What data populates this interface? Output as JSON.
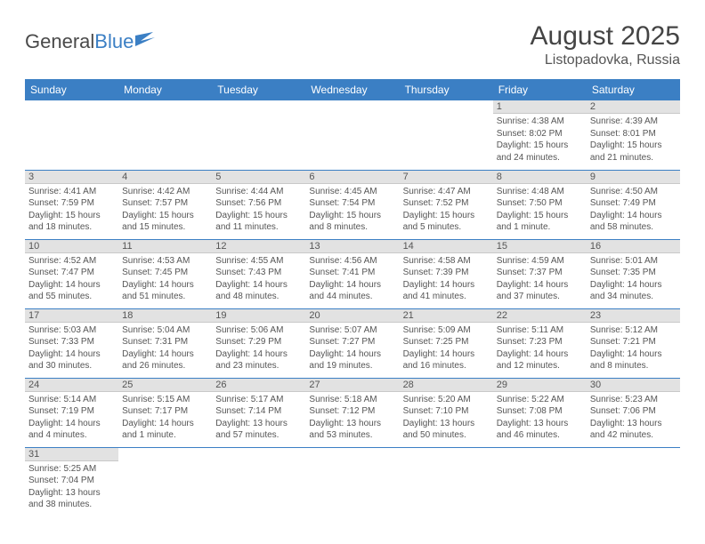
{
  "logo": {
    "text1": "General",
    "text2": "Blue"
  },
  "title": "August 2025",
  "location": "Listopadovka, Russia",
  "weekdays": [
    "Sunday",
    "Monday",
    "Tuesday",
    "Wednesday",
    "Thursday",
    "Friday",
    "Saturday"
  ],
  "colors": {
    "header_bg": "#3b7fc4",
    "header_text": "#ffffff",
    "daynum_bg": "#e2e2e2",
    "text": "#555555",
    "row_sep": "#3b7fc4"
  },
  "weeks": [
    [
      {
        "day": "",
        "sunrise": "",
        "sunset": "",
        "daylight": ""
      },
      {
        "day": "",
        "sunrise": "",
        "sunset": "",
        "daylight": ""
      },
      {
        "day": "",
        "sunrise": "",
        "sunset": "",
        "daylight": ""
      },
      {
        "day": "",
        "sunrise": "",
        "sunset": "",
        "daylight": ""
      },
      {
        "day": "",
        "sunrise": "",
        "sunset": "",
        "daylight": ""
      },
      {
        "day": "1",
        "sunrise": "Sunrise: 4:38 AM",
        "sunset": "Sunset: 8:02 PM",
        "daylight": "Daylight: 15 hours and 24 minutes."
      },
      {
        "day": "2",
        "sunrise": "Sunrise: 4:39 AM",
        "sunset": "Sunset: 8:01 PM",
        "daylight": "Daylight: 15 hours and 21 minutes."
      }
    ],
    [
      {
        "day": "3",
        "sunrise": "Sunrise: 4:41 AM",
        "sunset": "Sunset: 7:59 PM",
        "daylight": "Daylight: 15 hours and 18 minutes."
      },
      {
        "day": "4",
        "sunrise": "Sunrise: 4:42 AM",
        "sunset": "Sunset: 7:57 PM",
        "daylight": "Daylight: 15 hours and 15 minutes."
      },
      {
        "day": "5",
        "sunrise": "Sunrise: 4:44 AM",
        "sunset": "Sunset: 7:56 PM",
        "daylight": "Daylight: 15 hours and 11 minutes."
      },
      {
        "day": "6",
        "sunrise": "Sunrise: 4:45 AM",
        "sunset": "Sunset: 7:54 PM",
        "daylight": "Daylight: 15 hours and 8 minutes."
      },
      {
        "day": "7",
        "sunrise": "Sunrise: 4:47 AM",
        "sunset": "Sunset: 7:52 PM",
        "daylight": "Daylight: 15 hours and 5 minutes."
      },
      {
        "day": "8",
        "sunrise": "Sunrise: 4:48 AM",
        "sunset": "Sunset: 7:50 PM",
        "daylight": "Daylight: 15 hours and 1 minute."
      },
      {
        "day": "9",
        "sunrise": "Sunrise: 4:50 AM",
        "sunset": "Sunset: 7:49 PM",
        "daylight": "Daylight: 14 hours and 58 minutes."
      }
    ],
    [
      {
        "day": "10",
        "sunrise": "Sunrise: 4:52 AM",
        "sunset": "Sunset: 7:47 PM",
        "daylight": "Daylight: 14 hours and 55 minutes."
      },
      {
        "day": "11",
        "sunrise": "Sunrise: 4:53 AM",
        "sunset": "Sunset: 7:45 PM",
        "daylight": "Daylight: 14 hours and 51 minutes."
      },
      {
        "day": "12",
        "sunrise": "Sunrise: 4:55 AM",
        "sunset": "Sunset: 7:43 PM",
        "daylight": "Daylight: 14 hours and 48 minutes."
      },
      {
        "day": "13",
        "sunrise": "Sunrise: 4:56 AM",
        "sunset": "Sunset: 7:41 PM",
        "daylight": "Daylight: 14 hours and 44 minutes."
      },
      {
        "day": "14",
        "sunrise": "Sunrise: 4:58 AM",
        "sunset": "Sunset: 7:39 PM",
        "daylight": "Daylight: 14 hours and 41 minutes."
      },
      {
        "day": "15",
        "sunrise": "Sunrise: 4:59 AM",
        "sunset": "Sunset: 7:37 PM",
        "daylight": "Daylight: 14 hours and 37 minutes."
      },
      {
        "day": "16",
        "sunrise": "Sunrise: 5:01 AM",
        "sunset": "Sunset: 7:35 PM",
        "daylight": "Daylight: 14 hours and 34 minutes."
      }
    ],
    [
      {
        "day": "17",
        "sunrise": "Sunrise: 5:03 AM",
        "sunset": "Sunset: 7:33 PM",
        "daylight": "Daylight: 14 hours and 30 minutes."
      },
      {
        "day": "18",
        "sunrise": "Sunrise: 5:04 AM",
        "sunset": "Sunset: 7:31 PM",
        "daylight": "Daylight: 14 hours and 26 minutes."
      },
      {
        "day": "19",
        "sunrise": "Sunrise: 5:06 AM",
        "sunset": "Sunset: 7:29 PM",
        "daylight": "Daylight: 14 hours and 23 minutes."
      },
      {
        "day": "20",
        "sunrise": "Sunrise: 5:07 AM",
        "sunset": "Sunset: 7:27 PM",
        "daylight": "Daylight: 14 hours and 19 minutes."
      },
      {
        "day": "21",
        "sunrise": "Sunrise: 5:09 AM",
        "sunset": "Sunset: 7:25 PM",
        "daylight": "Daylight: 14 hours and 16 minutes."
      },
      {
        "day": "22",
        "sunrise": "Sunrise: 5:11 AM",
        "sunset": "Sunset: 7:23 PM",
        "daylight": "Daylight: 14 hours and 12 minutes."
      },
      {
        "day": "23",
        "sunrise": "Sunrise: 5:12 AM",
        "sunset": "Sunset: 7:21 PM",
        "daylight": "Daylight: 14 hours and 8 minutes."
      }
    ],
    [
      {
        "day": "24",
        "sunrise": "Sunrise: 5:14 AM",
        "sunset": "Sunset: 7:19 PM",
        "daylight": "Daylight: 14 hours and 4 minutes."
      },
      {
        "day": "25",
        "sunrise": "Sunrise: 5:15 AM",
        "sunset": "Sunset: 7:17 PM",
        "daylight": "Daylight: 14 hours and 1 minute."
      },
      {
        "day": "26",
        "sunrise": "Sunrise: 5:17 AM",
        "sunset": "Sunset: 7:14 PM",
        "daylight": "Daylight: 13 hours and 57 minutes."
      },
      {
        "day": "27",
        "sunrise": "Sunrise: 5:18 AM",
        "sunset": "Sunset: 7:12 PM",
        "daylight": "Daylight: 13 hours and 53 minutes."
      },
      {
        "day": "28",
        "sunrise": "Sunrise: 5:20 AM",
        "sunset": "Sunset: 7:10 PM",
        "daylight": "Daylight: 13 hours and 50 minutes."
      },
      {
        "day": "29",
        "sunrise": "Sunrise: 5:22 AM",
        "sunset": "Sunset: 7:08 PM",
        "daylight": "Daylight: 13 hours and 46 minutes."
      },
      {
        "day": "30",
        "sunrise": "Sunrise: 5:23 AM",
        "sunset": "Sunset: 7:06 PM",
        "daylight": "Daylight: 13 hours and 42 minutes."
      }
    ],
    [
      {
        "day": "31",
        "sunrise": "Sunrise: 5:25 AM",
        "sunset": "Sunset: 7:04 PM",
        "daylight": "Daylight: 13 hours and 38 minutes."
      },
      {
        "day": "",
        "sunrise": "",
        "sunset": "",
        "daylight": ""
      },
      {
        "day": "",
        "sunrise": "",
        "sunset": "",
        "daylight": ""
      },
      {
        "day": "",
        "sunrise": "",
        "sunset": "",
        "daylight": ""
      },
      {
        "day": "",
        "sunrise": "",
        "sunset": "",
        "daylight": ""
      },
      {
        "day": "",
        "sunrise": "",
        "sunset": "",
        "daylight": ""
      },
      {
        "day": "",
        "sunrise": "",
        "sunset": "",
        "daylight": ""
      }
    ]
  ]
}
